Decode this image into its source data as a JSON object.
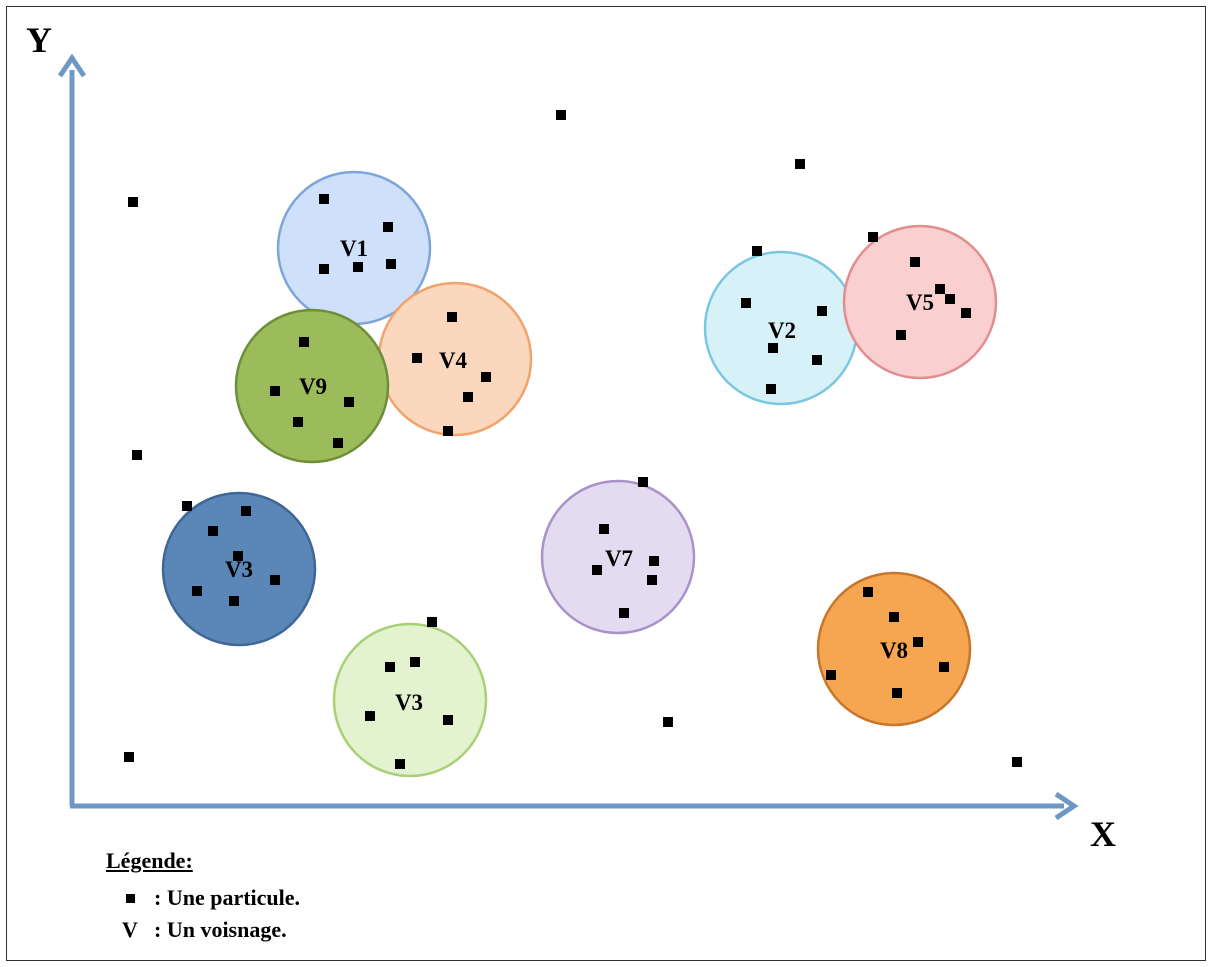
{
  "axes": {
    "x_label": "X",
    "y_label": "Y"
  },
  "colors": {
    "axis": "#6f97c6",
    "particle": "#000000"
  },
  "legend": {
    "title": "Légende:",
    "particle_text": ": Une particule.",
    "neighborhood_symbol": "V",
    "neighborhood_text": ": Un voisnage."
  },
  "neighborhoods": [
    {
      "id": "v1",
      "label": "V1",
      "fill": "#cfe0fa",
      "stroke": "#7ea5da"
    },
    {
      "id": "v9",
      "label": "V9",
      "fill": "#9cbb5a",
      "stroke": "#6e8f3a"
    },
    {
      "id": "v4",
      "label": "V4",
      "fill": "#fbd8bd",
      "stroke": "#f0a36c"
    },
    {
      "id": "v2",
      "label": "V2",
      "fill": "#d6f1f8",
      "stroke": "#79c8e0"
    },
    {
      "id": "v5",
      "label": "V5",
      "fill": "#f9cfd0",
      "stroke": "#e08e90"
    },
    {
      "id": "v3a",
      "label": "V3",
      "fill": "#5b86b8",
      "stroke": "#3e6795"
    },
    {
      "id": "v7",
      "label": "V7",
      "fill": "#e3dbef",
      "stroke": "#a992c9"
    },
    {
      "id": "v3b",
      "label": "V3",
      "fill": "#e4f3cf",
      "stroke": "#a8d076"
    },
    {
      "id": "v8",
      "label": "V8",
      "fill": "#f6a550",
      "stroke": "#c7762b"
    }
  ]
}
